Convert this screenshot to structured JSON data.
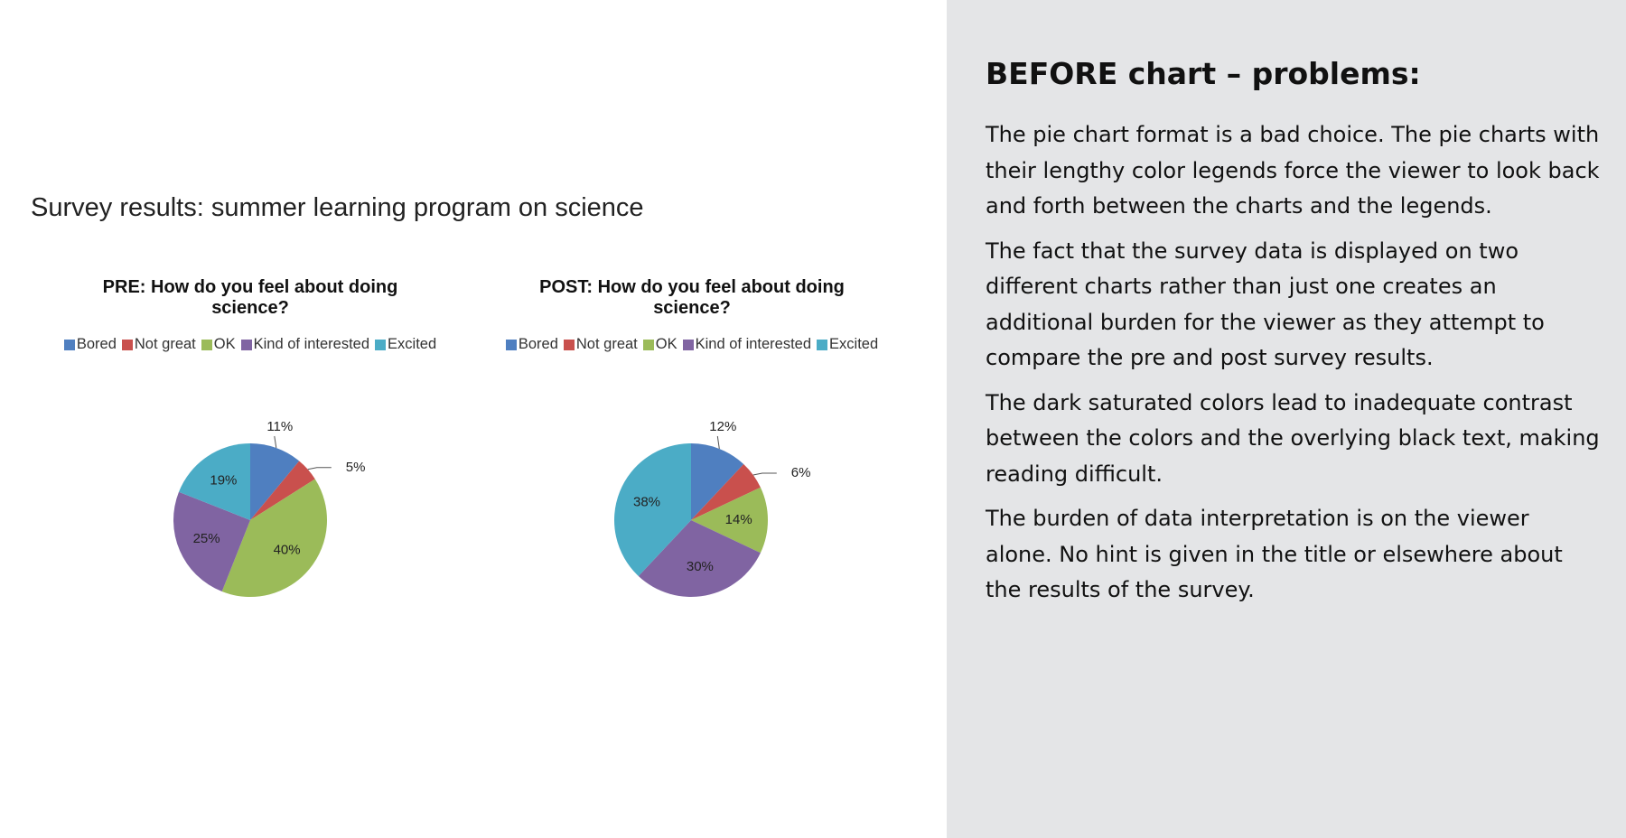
{
  "figure": {
    "title": "Survey results: summer learning program on science"
  },
  "legend_items": [
    {
      "label": "Bored",
      "color": "#4f7fc0"
    },
    {
      "label": "Not great",
      "color": "#c9504d"
    },
    {
      "label": "OK",
      "color": "#9bbb59"
    },
    {
      "label": "Kind of interested",
      "color": "#8064a2"
    },
    {
      "label": "Excited",
      "color": "#4bacc6"
    }
  ],
  "chart_data": [
    {
      "type": "pie",
      "title_line1": "PRE: How do you feel about doing",
      "title_line2": "science?",
      "categories": [
        "Bored",
        "Not great",
        "OK",
        "Kind of interested",
        "Excited"
      ],
      "values": [
        11,
        5,
        40,
        25,
        19
      ],
      "labels": [
        "11%",
        "5%",
        "40%",
        "25%",
        "19%"
      ],
      "legend_position": "top"
    },
    {
      "type": "pie",
      "title_line1": "POST: How do you feel about doing",
      "title_line2": "science?",
      "categories": [
        "Bored",
        "Not great",
        "OK",
        "Kind of interested",
        "Excited"
      ],
      "values": [
        12,
        6,
        14,
        30,
        38
      ],
      "labels": [
        "12%",
        "6%",
        "14%",
        "30%",
        "38%"
      ],
      "legend_position": "top"
    }
  ],
  "panel": {
    "heading": "BEFORE chart – problems:",
    "paragraphs": [
      "The pie chart format is a bad choice. The pie charts with their lengthy color legends force the viewer to look back and forth between the charts and the legends.",
      "The fact that the survey data is displayed on two different charts rather than just one creates an additional burden for the viewer as they attempt to compare the pre and post survey results.",
      "The dark saturated colors lead to inadequate contrast between the colors and the overlying black text, making reading difficult.",
      "The burden of data interpretation is on the viewer alone. No hint is given in the title or elsewhere about the results of the survey."
    ]
  }
}
